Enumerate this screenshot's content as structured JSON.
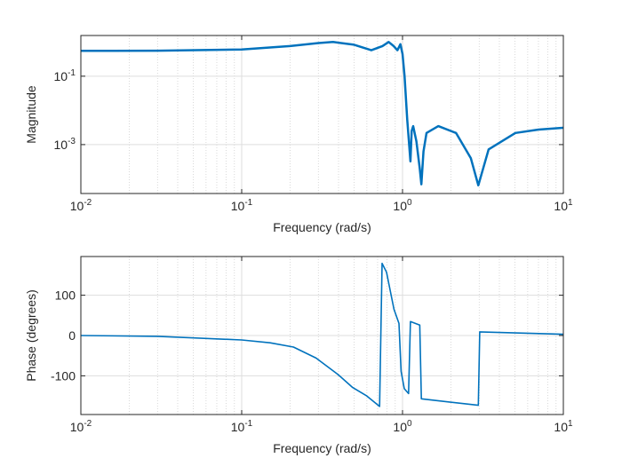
{
  "chart_data": [
    {
      "type": "line",
      "title": "",
      "xlabel": "Frequency (rad/s)",
      "ylabel": "Magnitude",
      "xscale": "log",
      "yscale": "log",
      "xlim": [
        0.01,
        10
      ],
      "ylim_log10": [
        -4.43,
        0.19
      ],
      "grid": true,
      "x_ticks": [
        {
          "base": "10",
          "exp": "-2",
          "value": 0.01
        },
        {
          "base": "10",
          "exp": "-1",
          "value": 0.1
        },
        {
          "base": "10",
          "exp": "0",
          "value": 1
        },
        {
          "base": "10",
          "exp": "1",
          "value": 10
        }
      ],
      "y_ticks": [
        {
          "base": "10",
          "exp": "-1",
          "value": -1
        },
        {
          "base": "10",
          "exp": "-3",
          "value": -3
        }
      ],
      "color": "#0072bd",
      "series": [
        {
          "name": "Magnitude",
          "x": [
            0.01,
            0.03,
            0.1,
            0.2,
            0.3,
            0.37,
            0.5,
            0.64,
            0.75,
            0.82,
            0.88,
            0.93,
            0.97,
            1.0,
            1.03,
            1.07,
            1.12,
            1.14,
            1.165,
            1.22,
            1.28,
            1.31,
            1.35,
            1.41,
            1.67,
            2.15,
            2.66,
            2.96,
            3.43,
            5.03,
            7,
            9.9,
            10
          ],
          "y_log10": [
            -0.26,
            -0.255,
            -0.22,
            -0.12,
            -0.03,
            0.0,
            -0.08,
            -0.24,
            -0.12,
            0.0,
            -0.12,
            -0.24,
            -0.065,
            -0.35,
            -1.0,
            -2.27,
            -3.49,
            -2.6,
            -2.46,
            -2.9,
            -3.7,
            -4.16,
            -3.2,
            -2.66,
            -2.46,
            -2.66,
            -3.4,
            -4.19,
            -3.14,
            -2.66,
            -2.56,
            -2.51,
            -2.51
          ]
        }
      ]
    },
    {
      "type": "line",
      "title": "",
      "xlabel": "Frequency (rad/s)",
      "ylabel": "Phase (degrees)",
      "xscale": "log",
      "yscale": "linear",
      "xlim": [
        0.01,
        10
      ],
      "ylim": [
        -196,
        196
      ],
      "grid": true,
      "x_ticks": [
        {
          "base": "10",
          "exp": "-2",
          "value": 0.01
        },
        {
          "base": "10",
          "exp": "-1",
          "value": 0.1
        },
        {
          "base": "10",
          "exp": "0",
          "value": 1
        },
        {
          "base": "10",
          "exp": "1",
          "value": 10
        }
      ],
      "y_ticks": [
        {
          "label": "100",
          "value": 100
        },
        {
          "label": "0",
          "value": 0
        },
        {
          "label": "-100",
          "value": -100
        }
      ],
      "color": "#0072bd",
      "series": [
        {
          "name": "Phase",
          "x": [
            0.01,
            0.03,
            0.1,
            0.15,
            0.21,
            0.29,
            0.395,
            0.49,
            0.6,
            0.72,
            0.746,
            0.795,
            0.84,
            0.885,
            0.95,
            0.98,
            1.026,
            1.09,
            1.12,
            1.28,
            1.31,
            2.96,
            3.02,
            10
          ],
          "y": [
            0,
            -2,
            -11,
            -18,
            -28.6,
            -56,
            -96,
            -129,
            -150,
            -176,
            179,
            157,
            110,
            65,
            30,
            -89,
            -132,
            -144,
            34.5,
            26,
            -157,
            -173,
            9,
            3
          ]
        }
      ]
    }
  ]
}
